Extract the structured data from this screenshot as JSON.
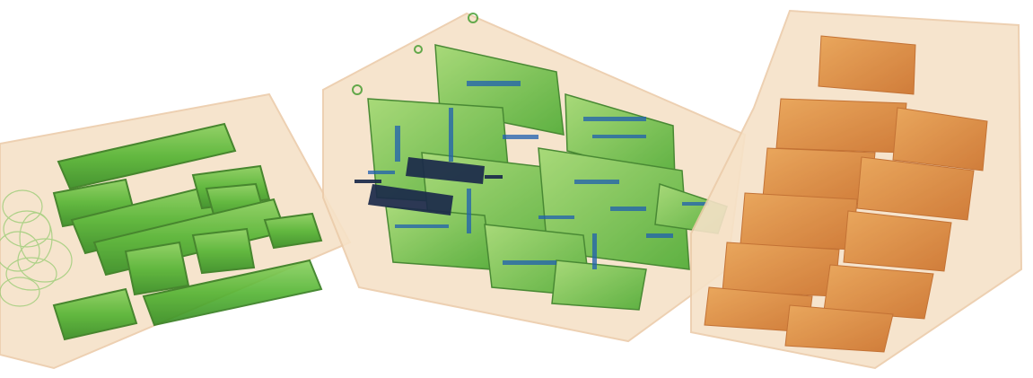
{
  "scene": {
    "description_visible_text": "",
    "containers": [
      {
        "id": "left-tray",
        "contents": "tubes-and-cables",
        "content_color": "#4fb32d"
      },
      {
        "id": "center-box",
        "contents": "electronic-circuit-boards",
        "content_color": "#3fae2a",
        "dense_color": "#1b3f7a"
      },
      {
        "id": "right-box",
        "contents": "stacked-packages",
        "content_color": "#d97a1e"
      }
    ],
    "colors": {
      "container_fill": "#f6e2c8",
      "container_edge": "#e9c9a3",
      "organic_low": "#f3d3ad",
      "organic_green": "#4fb32d",
      "metal_blue": "#1f5fb0",
      "dense_dark": "#1b2a4a",
      "orange": "#d97a1e",
      "background": "#ffffff"
    }
  }
}
